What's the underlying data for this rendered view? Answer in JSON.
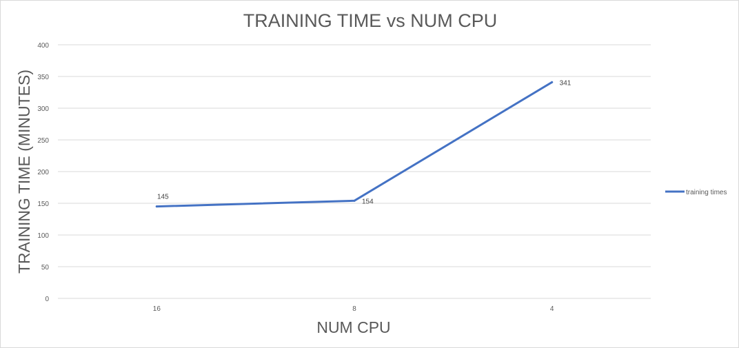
{
  "chart_data": {
    "type": "line",
    "title": "TRAINING TIME vs NUM CPU",
    "xlabel": "NUM CPU",
    "ylabel": "TRAINING TIME (MINUTES)",
    "categories": [
      "16",
      "8",
      "4"
    ],
    "series": [
      {
        "name": "training times",
        "values": [
          145,
          154,
          341
        ],
        "color": "#4472c4"
      }
    ],
    "ylim": [
      0,
      400
    ],
    "yticks": [
      0,
      50,
      100,
      150,
      200,
      250,
      300,
      350,
      400
    ],
    "grid": true,
    "legend_position": "right",
    "data_labels": true
  }
}
